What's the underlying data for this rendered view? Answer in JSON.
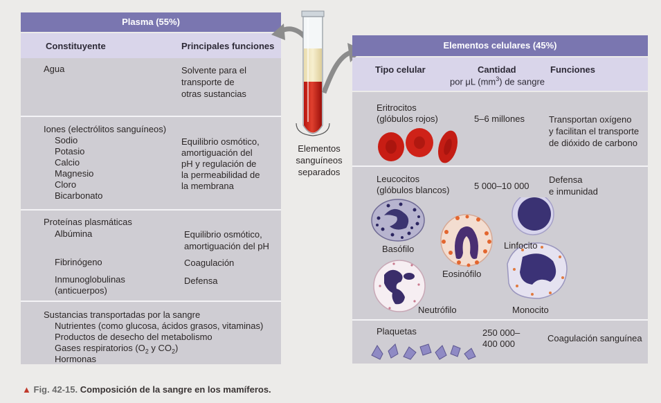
{
  "plasma": {
    "header": "Plasma (55%)",
    "col_constituent": "Constituyente",
    "col_functions": "Principales funciones",
    "rows": [
      {
        "constituent": [
          "Agua"
        ],
        "functions": [
          "Solvente para el",
          "transporte de",
          "otras sustancias"
        ]
      },
      {
        "constituent": [
          "Iones (electrólitos sanguíneos)",
          "Sodio",
          "Potasio",
          "Calcio",
          "Magnesio",
          "Cloro",
          "Bicarbonato"
        ],
        "functions": [
          "Equilibrio osmótico,",
          "amortiguación del",
          "pH y regulación de",
          "la permeabilidad de",
          "la membrana"
        ]
      },
      {
        "constituent": [
          "Proteínas plasmáticas",
          "Albúmina",
          "Fibrinógeno",
          "Inmunoglobulinas",
          "(anticuerpos)"
        ],
        "functions": [
          "Equilibrio osmótico,",
          "amortiguación del pH",
          "Coagulación",
          "Defensa"
        ]
      },
      {
        "constituent": [
          "Sustancias transportadas por la sangre",
          "Nutrientes (como glucosa, ácidos grasos, vitaminas)",
          "Productos de desecho del metabolismo",
          "Gases respiratorios (O",
          "2",
          " y CO",
          "2",
          ")",
          "Hormonas"
        ],
        "functions": []
      }
    ]
  },
  "tube": {
    "label": [
      "Elementos",
      "sanguíneos",
      "separados"
    ]
  },
  "cells": {
    "header": "Elementos celulares (45%)",
    "col_type": "Tipo celular",
    "col_quantity": "Cantidad",
    "col_quantity_sub": [
      "por μL (mm",
      "3",
      ") de sangre"
    ],
    "col_functions": "Funciones",
    "rows": [
      {
        "type": [
          "Eritrocitos",
          "(glóbulos rojos)"
        ],
        "quantity": [
          "5–6 millones"
        ],
        "functions": [
          "Transportan oxígeno",
          "y facilitan el transporte",
          "de dióxido de carbono"
        ]
      },
      {
        "type": [
          "Leucocitos",
          "(glóbulos blancos)"
        ],
        "quantity": [
          "5 000–10 000"
        ],
        "functions": [
          "Defensa",
          "e inmunidad"
        ],
        "cell_labels": {
          "basophil": "Basófilo",
          "eosinophil": "Eosinófilo",
          "lymphocyte": "Linfocito",
          "neutrophil": "Neutrófilo",
          "monocyte": "Monocito"
        }
      },
      {
        "type": [
          "Plaquetas"
        ],
        "quantity": [
          "250 000–",
          "400 000"
        ],
        "functions": [
          "Coagulación sanguínea"
        ]
      }
    ]
  },
  "caption": {
    "marker": "▲",
    "figure": "Fig. 42-15.",
    "text": "Composición de la sangre en los mamíferos."
  },
  "colors": {
    "header": "#7a76b0",
    "column_header": "#d9d5ea",
    "panel": "#cfcdd3",
    "accent": "#c0392b"
  }
}
